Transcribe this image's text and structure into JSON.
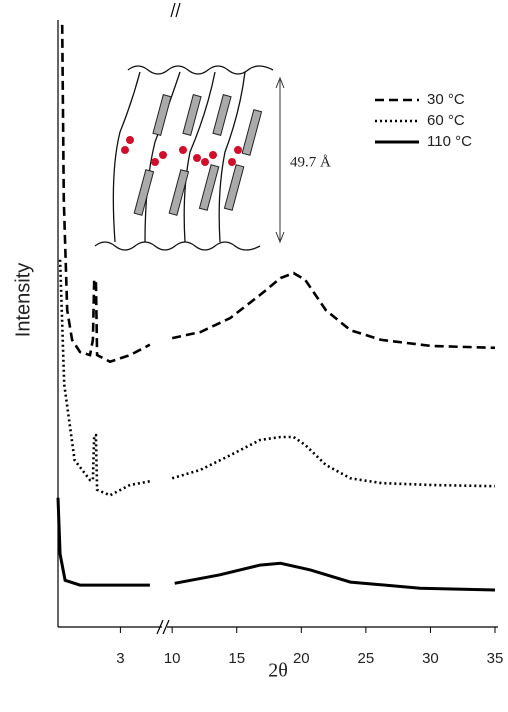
{
  "chart_data": {
    "type": "line",
    "x_label": "2θ",
    "y_label": "Intensity",
    "xlim": [
      1.5,
      35
    ],
    "xbreak": [
      4,
      9.6
    ],
    "xticks": [
      3,
      10,
      15,
      20,
      25,
      30,
      35
    ],
    "ylim": [
      0,
      100
    ],
    "annotation": "49.7 Å",
    "legend": "upper right",
    "series": [
      {
        "name": "30 °C",
        "color": "#000000",
        "dash": "dashed",
        "x": [
          1.6,
          1.64,
          1.72,
          1.84,
          2.03,
          2.27,
          2.34,
          2.37,
          2.41,
          2.44,
          2.75,
          3.23,
          3.71,
          null,
          10.0,
          12.2,
          14.5,
          16.8,
          18.4,
          19.4,
          20.3,
          21.9,
          23.8,
          26.2,
          30.1,
          35
        ],
        "values": [
          99.2,
          70.3,
          52.2,
          47.3,
          45.3,
          44.8,
          47.3,
          57.2,
          57.2,
          44.8,
          43.7,
          44.8,
          46.5,
          null,
          47.6,
          48.6,
          50.9,
          54.7,
          57.5,
          58.3,
          57.2,
          52.2,
          48.9,
          47.3,
          46.3,
          46.0
        ]
      },
      {
        "name": "60 °C",
        "color": "#000000",
        "dash": "dotted",
        "x": [
          1.55,
          1.65,
          1.9,
          2.27,
          2.34,
          2.37,
          2.41,
          2.44,
          2.75,
          3.23,
          3.71,
          null,
          10.0,
          12.2,
          14.5,
          16.8,
          18.4,
          19.4,
          20.3,
          21.9,
          23.8,
          26.2,
          30.1,
          35
        ],
        "values": [
          60.5,
          40.0,
          27.5,
          24.2,
          24.2,
          31.6,
          31.6,
          22.6,
          21.7,
          23.4,
          24.0,
          null,
          24.5,
          25.9,
          28.3,
          30.8,
          31.3,
          31.3,
          30.0,
          26.7,
          24.5,
          23.7,
          23.4,
          23.2
        ]
      },
      {
        "name": "110 °C",
        "color": "#000000",
        "dash": "solid",
        "x": [
          1.5,
          1.55,
          1.67,
          2.03,
          2.75,
          3.71,
          null,
          10.2,
          13.7,
          16.8,
          18.4,
          20.7,
          23.8,
          29.2,
          35
        ],
        "values": [
          21.3,
          12.0,
          7.7,
          6.9,
          6.9,
          6.9,
          null,
          7.2,
          8.6,
          10.2,
          10.5,
          9.4,
          7.4,
          6.4,
          6.1
        ]
      }
    ]
  }
}
